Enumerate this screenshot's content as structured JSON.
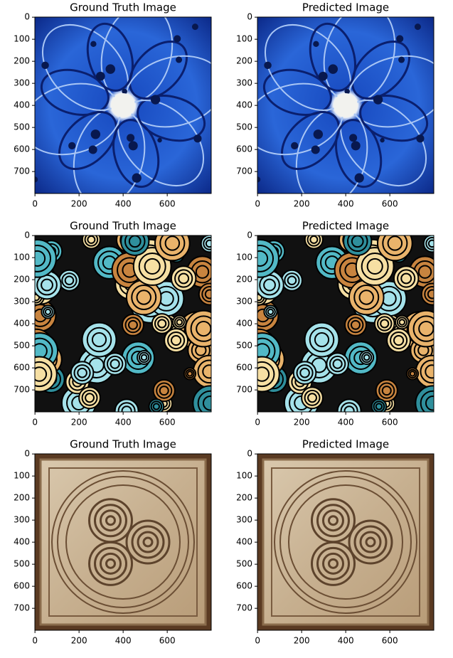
{
  "chart_data": [
    {
      "type": "image",
      "title": "Ground Truth Image",
      "xlim": [
        -0.5,
        799.5
      ],
      "ylim": [
        799.5,
        -0.5
      ],
      "xticks": [
        0,
        200,
        400,
        600
      ],
      "yticks": [
        0,
        100,
        200,
        300,
        400,
        500,
        600,
        700
      ]
    },
    {
      "type": "image",
      "title": "Predicted Image",
      "xlim": [
        -0.5,
        799.5
      ],
      "ylim": [
        799.5,
        -0.5
      ],
      "xticks": [
        0,
        200,
        400,
        600
      ],
      "yticks": [
        0,
        100,
        200,
        300,
        400,
        500,
        600,
        700
      ]
    },
    {
      "type": "image",
      "title": "Ground Truth Image",
      "xlim": [
        -0.5,
        799.5
      ],
      "ylim": [
        799.5,
        -0.5
      ],
      "xticks": [
        0,
        200,
        400,
        600
      ],
      "yticks": [
        0,
        100,
        200,
        300,
        400,
        500,
        600,
        700
      ]
    },
    {
      "type": "image",
      "title": "Predicted Image",
      "xlim": [
        -0.5,
        799.5
      ],
      "ylim": [
        799.5,
        -0.5
      ],
      "xticks": [
        0,
        200,
        400,
        600
      ],
      "yticks": [
        0,
        100,
        200,
        300,
        400,
        500,
        600,
        700
      ]
    },
    {
      "type": "image",
      "title": "Ground Truth Image",
      "xlim": [
        -0.5,
        799.5
      ],
      "ylim": [
        799.5,
        -0.5
      ],
      "xticks": [
        0,
        200,
        400,
        600
      ],
      "yticks": [
        0,
        100,
        200,
        300,
        400,
        500,
        600,
        700
      ]
    },
    {
      "type": "image",
      "title": "Predicted Image",
      "xlim": [
        -0.5,
        799.5
      ],
      "ylim": [
        799.5,
        -0.5
      ],
      "xticks": [
        0,
        200,
        400,
        600
      ],
      "yticks": [
        0,
        100,
        200,
        300,
        400,
        500,
        600,
        700
      ]
    }
  ]
}
